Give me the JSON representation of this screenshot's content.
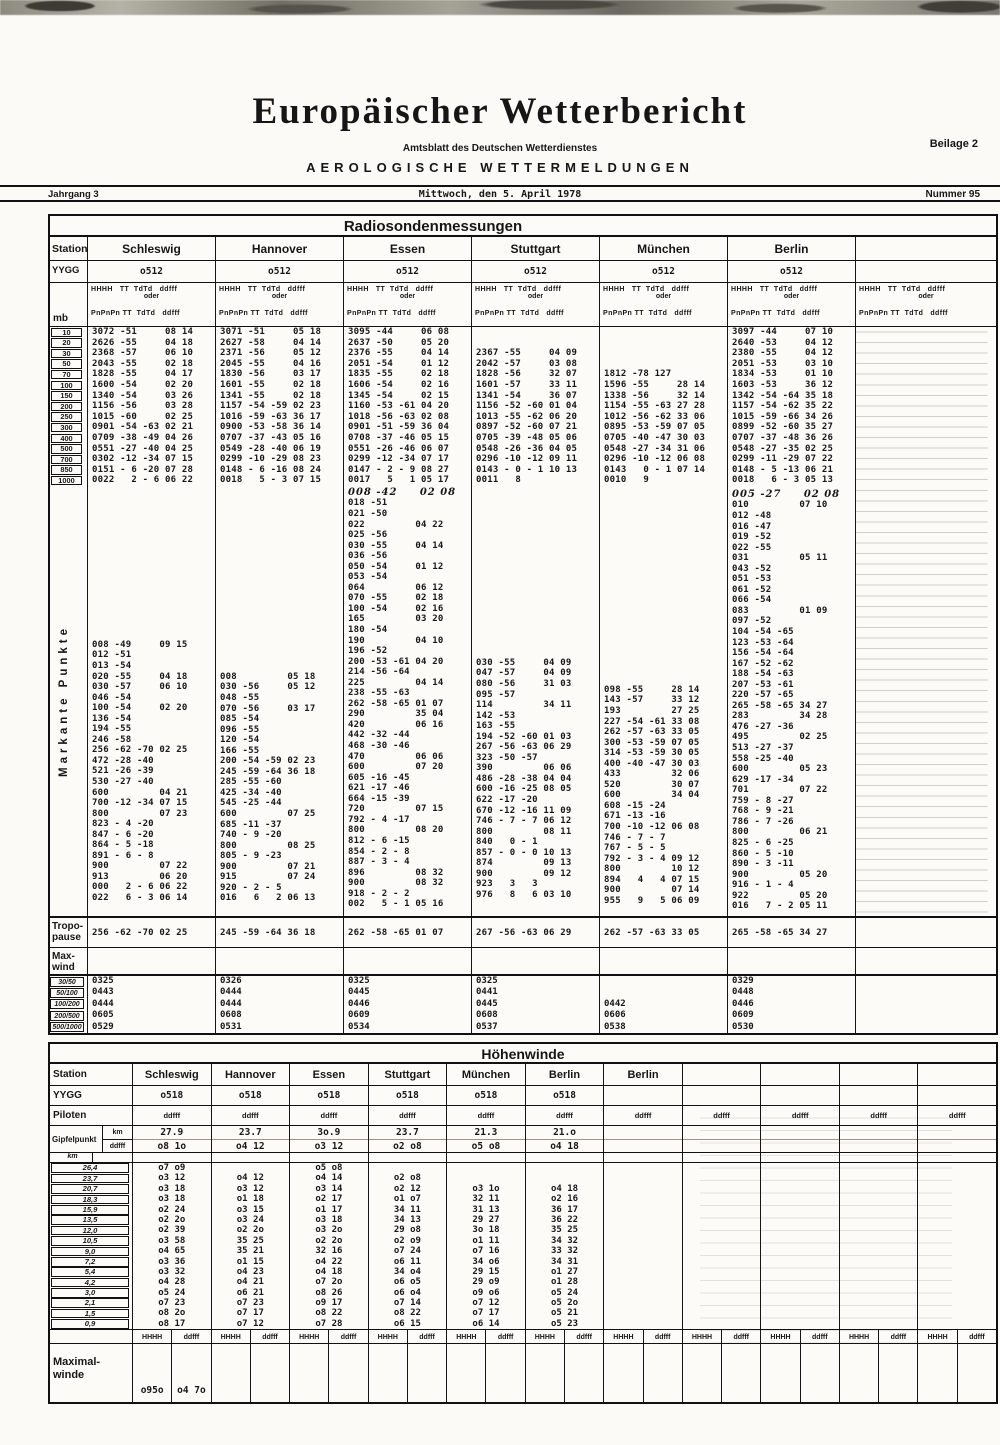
{
  "page": {
    "title": "Europäischer Wetterbericht",
    "subtitle": "Amtsblatt des Deutschen Wetterdienstes",
    "beilage": "Beilage 2",
    "section": "AEROLOGISCHE WETTERMELDUNGEN",
    "jahrgang": "Jahrgang 3",
    "date": "Mittwoch, den 5. April 1978",
    "nummer": "Nummer 95"
  },
  "radiosonde": {
    "title": "Radiosondenmessungen",
    "station_label": "Station",
    "yygg_label": "YYGG",
    "yygg_value": "o512",
    "mb_label": "mb",
    "stations": [
      "Schleswig",
      "Hannover",
      "Essen",
      "Stuttgart",
      "München",
      "Berlin"
    ],
    "colheader": {
      "line1": "HHHH   TT  TdTd   ddfff",
      "line2": "oder",
      "line3": "PnPnPn TT  TdTd   ddfff"
    },
    "mb_levels": [
      "10",
      "20",
      "30",
      "50",
      "70",
      "100",
      "150",
      "200",
      "250",
      "300",
      "400",
      "500",
      "700",
      "850",
      "1000"
    ],
    "pressure": [
      [
        "3072 -51     08 14",
        "2626 -55     04 18",
        "2368 -57     06 10",
        "2043 -55     02 18",
        "1828 -55     04 17",
        "1600 -54     02 20",
        "1340 -54     03 26",
        "1156 -56     03 28",
        "1015 -60     02 25",
        "0901 -54 -63 02 21",
        "0709 -38 -49 04 26",
        "0551 -27 -40 04 25",
        "0302 -12 -34 07 15",
        "0151 - 6 -20 07 28",
        "0022   2 - 6 06 22"
      ],
      [
        "3071 -51     05 18",
        "2627 -58     04 14",
        "2371 -56     05 12",
        "2045 -55     04 16",
        "1830 -56     03 17",
        "1601 -55     02 18",
        "1341 -55     02 18",
        "1157 -54 -59 02 23",
        "1016 -59 -63 36 17",
        "0900 -53 -58 36 14",
        "0707 -37 -43 05 16",
        "0549 -28 -40 06 19",
        "0299 -10 -29 08 23",
        "0148 - 6 -16 08 24",
        "0018   5 - 3 07 15"
      ],
      [
        "3095 -44     06 08",
        "2637 -50     05 20",
        "2376 -55     04 14",
        "2051 -54     01 12",
        "1835 -55     02 18",
        "1606 -54     02 16",
        "1345 -54     02 15",
        "1160 -53 -61 04 20",
        "1018 -56 -63 02 08",
        "0901 -51 -59 36 04",
        "0708 -37 -46 05 15",
        "0551 -26 -46 06 07",
        "0299 -12 -34 07 17",
        "0147 - 2 - 9 08 27",
        "0017   5   1 05 17"
      ],
      [
        "",
        "",
        "2367 -55     04 09",
        "2042 -57     03 08",
        "1828 -56     32 07",
        "1601 -57     33 11",
        "1341 -54     36 07",
        "1156 -52 -60 01 04",
        "1013 -55 -62 06 20",
        "0897 -52 -60 07 21",
        "0705 -39 -48 05 06",
        "0548 -26 -36 04 05",
        "0296 -10 -12 09 11",
        "0143 - 0 - 1 10 13",
        "0011   8"
      ],
      [
        "",
        "",
        "",
        "",
        "1812 -78 127",
        "1596 -55     28 14",
        "1338 -56     32 14",
        "1154 -55 -63 27 28",
        "1012 -56 -62 33 06",
        "0895 -53 -59 07 05",
        "0705 -40 -47 30 03",
        "0548 -27 -34 31 06",
        "0296 -10 -12 06 08",
        "0143   0 - 1 07 14",
        "0010   9"
      ],
      [
        "3097 -44     07 10",
        "2640 -53     04 12",
        "2380 -55     04 12",
        "2051 -53     03 10",
        "1834 -53     01 10",
        "1603 -53     36 12",
        "1342 -54 -64 35 18",
        "1157 -54 -62 35 22",
        "1015 -59 -66 34 26",
        "0899 -52 -60 35 27",
        "0707 -37 -48 36 26",
        "0548 -27 -35 02 25",
        "0299 -11 -29 07 22",
        "0148 - 5 -13 06 21",
        "0018   6 - 3 05 13"
      ]
    ],
    "markante_label": "Markante Punkte",
    "markante": [
      [
        "008 -49     09 15",
        "012 -51",
        "013 -54",
        "020 -55     04 18",
        "030 -57     06 10",
        "046 -54",
        "100 -54     02 20",
        "136 -54",
        "194 -55",
        "246 -58",
        "256 -62 -70 02 25",
        "472 -28 -40",
        "521 -26 -39",
        "530 -27 -40",
        "600         04 21",
        "700 -12 -34 07 15",
        "800         07 23",
        "823 - 4 -20",
        "847 - 6 -20",
        "864 - 5 -18",
        "891 - 6 - 8",
        "900         07 22",
        "913         06 20",
        "000   2 - 6 06 22",
        "022   6 - 3 06 14"
      ],
      [
        "008         05 18",
        "030 -56     05 12",
        "048 -55",
        "070 -56     03 17",
        "085 -54",
        "096 -55",
        "120 -54",
        "166 -55",
        "200 -54 -59 02 23",
        "245 -59 -64 36 18",
        "285 -55 -60",
        "425 -34 -40",
        "545 -25 -44",
        "600         07 25",
        "685 -11 -37",
        "740 - 9 -20",
        "800         08 25",
        "805 - 9 -23",
        "900         07 21",
        "915         07 24",
        "920 - 2 - 5",
        "016   6   2 06 13"
      ],
      [
        "008 -42     02 08",
        "018 -51",
        "021 -50",
        "022         04 22",
        "025 -56",
        "030 -55     04 14",
        "036 -56",
        "050 -54     01 12",
        "053 -54",
        "064         06 12",
        "070 -55     02 18",
        "100 -54     02 16",
        "165         03 20",
        "180 -54",
        "190         04 10",
        "196 -52",
        "200 -53 -61 04 20",
        "214 -56 -64",
        "225         04 14",
        "238 -55 -63",
        "262 -58 -65 01 07",
        "290         35 04",
        "420         06 16",
        "442 -32 -44",
        "468 -30 -46",
        "470         06 06",
        "600         07 20",
        "605 -16 -45",
        "621 -17 -46",
        "664 -15 -39",
        "720         07 15",
        "792 - 4 -17",
        "800         08 20",
        "812 - 6 -15",
        "854 - 2 - 8",
        "887 - 3 - 4",
        "896         08 32",
        "900         08 32",
        "918 - 2 - 2",
        "002   5 - 1 05 16"
      ],
      [
        "030 -55     04 09",
        "047 -57     04 09",
        "080 -56     31 03",
        "095 -57",
        "114         34 11",
        "142 -53",
        "163 -55",
        "194 -52 -60 01 03",
        "267 -56 -63 06 29",
        "323 -50 -57",
        "390         06 06",
        "486 -28 -38 04 04",
        "600 -16 -25 08 05",
        "622 -17 -20",
        "670 -12 -16 11 09",
        "746 - 7 - 7 06 12",
        "800         08 11",
        "840   0 - 1",
        "857 - 0 - 0 10 13",
        "874         09 13",
        "900         09 12",
        "923   3   3",
        "976   8   6 03 10"
      ],
      [
        "098 -55     28 14",
        "143 -57     33 12",
        "193         27 25",
        "227 -54 -61 33 08",
        "262 -57 -63 33 05",
        "300 -53 -59 07 05",
        "314 -53 -59 30 05",
        "400 -40 -47 30 03",
        "433         32 06",
        "520         30 07",
        "600         34 04",
        "608 -15 -24",
        "671 -13 -16",
        "700 -10 -12 06 08",
        "746 - 7 - 7",
        "767 - 5 - 5",
        "792 - 3 - 4 09 12",
        "800         10 12",
        "894   4   4 07 15",
        "900         07 14",
        "955   9   5 06 09"
      ],
      [
        "005 -27     02 08",
        "010         07 10",
        "012 -48",
        "016 -47",
        "019 -52",
        "022 -55",
        "031         05 11",
        "043 -52",
        "051 -53",
        "061 -52",
        "066 -54",
        "083         01 09",
        "097 -52",
        "104 -54 -65",
        "123 -53 -64",
        "156 -54 -64",
        "167 -52 -62",
        "188 -54 -63",
        "207 -53 -61",
        "220 -57 -65",
        "265 -58 -65 34 27",
        "283         34 28",
        "476 -27 -36",
        "495         02 25",
        "513 -27 -37",
        "558 -25 -40",
        "600         05 23",
        "629 -17 -34",
        "701         07 22",
        "759 - 8 -27",
        "768 - 9 -21",
        "786 - 7 -26",
        "800         06 21",
        "825 - 6 -25",
        "860 - 5 -10",
        "890 - 3 -11",
        "900         05 20",
        "916 - 1 - 4",
        "922         05 20",
        "016   7 - 2 05 11"
      ]
    ],
    "tropopause_label": [
      "Tropo-",
      "pause"
    ],
    "tropopause": [
      "256 -62 -70 02 25",
      "245 -59 -64 36 18",
      "262 -58 -65 01 07",
      "267 -56 -63 06 29",
      "262 -57 -63 33 05",
      "265 -58 -65 34 27"
    ],
    "maxwind_label": [
      "Max-",
      "wind"
    ],
    "thickness_labels": [
      "30/50",
      "50/100",
      "100/200",
      "200/500",
      "500/1000"
    ],
    "thickness": [
      [
        "0325",
        "0326",
        "0325",
        "0325",
        "",
        "0329"
      ],
      [
        "0443",
        "0444",
        "0445",
        "0441",
        "",
        "0448"
      ],
      [
        "0444",
        "0444",
        "0446",
        "0445",
        "0442",
        "0446"
      ],
      [
        "0605",
        "0608",
        "0609",
        "0608",
        "0606",
        "0609"
      ],
      [
        "0529",
        "0531",
        "0534",
        "0537",
        "0538",
        "0530"
      ]
    ]
  },
  "hoehenwinde": {
    "title": "Höhenwinde",
    "station_label": "Station",
    "stations": [
      "Schleswig",
      "Hannover",
      "Essen",
      "Stuttgart",
      "München",
      "Berlin",
      "Berlin"
    ],
    "yygg_label": "YYGG",
    "yygg_value": "o518",
    "piloten_label": "Piloten",
    "ddfff_label": "ddfff",
    "gipfelpunkt_label": "Gipfelpunkt",
    "km_label": "km",
    "hhhh_label": "HHHH",
    "gipfel_km": [
      "27.9",
      "23.7",
      "3o.9",
      "23.7",
      "21.3",
      "21.o"
    ],
    "gipfel_ddfff": [
      "o8 1o",
      "o4 12",
      "o3 12",
      "o2 o8",
      "o5 o8",
      "o4 18"
    ],
    "altitudes": [
      "26,4",
      "23,7",
      "20,7",
      "18,3",
      "15,9",
      "13,5",
      "12,0",
      "10,5",
      "9,0",
      "7,2",
      "5,4",
      "4,2",
      "3,0",
      "2,1",
      "1,5",
      "0,9"
    ],
    "winds": [
      [
        "o7 o9",
        "o3 12",
        "o3 18",
        "o3 18",
        "o2 24",
        "o2 2o",
        "o2 39",
        "o3 58",
        "o4 65",
        "o3 36",
        "o3 32",
        "o4 28",
        "o5 24",
        "o7 23",
        "o8 2o",
        "o8 17"
      ],
      [
        "",
        "o4 12",
        "o3 12",
        "o1 18",
        "o3 15",
        "o3 24",
        "o2 2o",
        "35 25",
        "35 21",
        "o1 15",
        "o4 23",
        "o4 21",
        "o6 21",
        "o7 23",
        "o7 17",
        "o7 12"
      ],
      [
        "o5 o8",
        "o4 14",
        "o3 14",
        "o2 17",
        "o1 17",
        "o3 18",
        "o3 2o",
        "o2 2o",
        "32 16",
        "o4 22",
        "o4 18",
        "o7 2o",
        "o8 26",
        "o9 17",
        "o8 22",
        "o7 28"
      ],
      [
        "",
        "o2 o8",
        "o2 12",
        "o1 o7",
        "34 11",
        "34 13",
        "29 o8",
        "o2 o9",
        "o7 24",
        "o6 11",
        "34 o4",
        "o6 o5",
        "o6 o4",
        "o7 14",
        "o8 22",
        "o6 15"
      ],
      [
        "",
        "",
        "o3 1o",
        "32 11",
        "31 13",
        "29 27",
        "3o 18",
        "o1 11",
        "o7 16",
        "34 o6",
        "29 15",
        "29 o9",
        "o9 o6",
        "o7 12",
        "o7 17",
        "o6 14"
      ],
      [
        "",
        "",
        "o4 18",
        "o2 16",
        "36 17",
        "36 22",
        "35 25",
        "34 32",
        "33 32",
        "34 31",
        "o1 27",
        "o1 28",
        "o5 24",
        "o5 2o",
        "o5 21",
        "o5 23"
      ]
    ],
    "maximalwinde_label": [
      "Maximal-",
      "winde"
    ],
    "maximal_hhhh": "o95o",
    "maximal_ddfff": "o4 7o"
  }
}
